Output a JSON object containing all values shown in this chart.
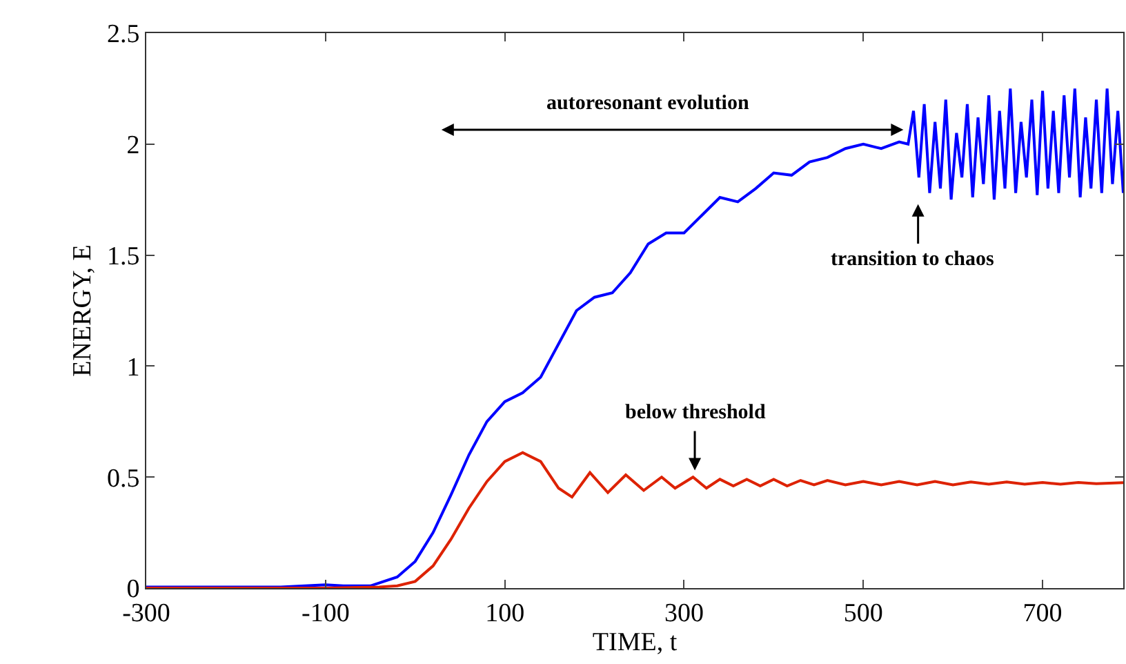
{
  "chart_data": {
    "type": "line",
    "xlabel": "TIME, t",
    "ylabel": "ENERGY, E",
    "xlim": [
      -300,
      790
    ],
    "xticks": [
      -300,
      -100,
      100,
      300,
      500,
      700
    ],
    "ylim": [
      0,
      2.5
    ],
    "yticks": [
      0,
      0.5,
      1,
      1.5,
      2,
      2.5
    ],
    "marker": "none",
    "line_style": "solid",
    "series": [
      {
        "color": "#0000ff",
        "x": [
          -300,
          -150,
          -100,
          -80,
          -50,
          -20,
          0,
          20,
          40,
          60,
          80,
          100,
          120,
          140,
          160,
          180,
          200,
          220,
          240,
          260,
          280,
          300,
          320,
          340,
          360,
          380,
          400,
          420,
          440,
          460,
          480,
          500,
          520,
          540,
          550,
          556,
          562,
          568,
          574,
          580,
          586,
          592,
          598,
          604,
          610,
          616,
          622,
          628,
          634,
          640,
          646,
          652,
          658,
          664,
          670,
          676,
          682,
          688,
          694,
          700,
          706,
          712,
          718,
          724,
          730,
          736,
          742,
          748,
          754,
          760,
          766,
          772,
          778,
          784,
          790
        ],
        "values": [
          0.005,
          0.005,
          0.015,
          0.01,
          0.01,
          0.05,
          0.12,
          0.25,
          0.42,
          0.6,
          0.75,
          0.84,
          0.88,
          0.95,
          1.1,
          1.25,
          1.31,
          1.33,
          1.42,
          1.55,
          1.6,
          1.6,
          1.68,
          1.76,
          1.74,
          1.8,
          1.87,
          1.86,
          1.92,
          1.94,
          1.98,
          2.0,
          1.98,
          2.01,
          2.0,
          2.15,
          1.85,
          2.18,
          1.78,
          2.1,
          1.8,
          2.2,
          1.75,
          2.05,
          1.85,
          2.18,
          1.76,
          2.12,
          1.82,
          2.22,
          1.75,
          2.15,
          1.8,
          2.25,
          1.78,
          2.1,
          1.85,
          2.2,
          1.77,
          2.24,
          1.8,
          2.15,
          1.78,
          2.22,
          1.85,
          2.25,
          1.76,
          2.12,
          1.8,
          2.2,
          1.78,
          2.25,
          1.82,
          2.15,
          1.78
        ]
      },
      {
        "color": "#dd2200",
        "x": [
          -300,
          -100,
          -40,
          -20,
          0,
          20,
          40,
          60,
          80,
          100,
          120,
          140,
          160,
          175,
          195,
          215,
          235,
          255,
          275,
          290,
          310,
          325,
          340,
          355,
          370,
          385,
          400,
          415,
          430,
          445,
          460,
          480,
          500,
          520,
          540,
          560,
          580,
          600,
          620,
          640,
          660,
          680,
          700,
          720,
          740,
          760,
          790
        ],
        "values": [
          0.0,
          0.0,
          0.005,
          0.01,
          0.03,
          0.1,
          0.22,
          0.36,
          0.48,
          0.57,
          0.61,
          0.57,
          0.45,
          0.41,
          0.52,
          0.43,
          0.51,
          0.44,
          0.5,
          0.45,
          0.5,
          0.45,
          0.49,
          0.46,
          0.49,
          0.46,
          0.49,
          0.46,
          0.485,
          0.465,
          0.485,
          0.465,
          0.48,
          0.465,
          0.48,
          0.465,
          0.48,
          0.465,
          0.478,
          0.468,
          0.478,
          0.468,
          0.476,
          0.468,
          0.476,
          0.47,
          0.475
        ]
      }
    ],
    "annotations": [
      "autoresonant evolution",
      "transition to chaos",
      {
        "text": "below threshold",
        "x": 312,
        "y": 0.53
      }
    ]
  }
}
